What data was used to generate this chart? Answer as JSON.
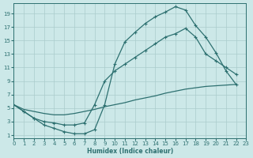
{
  "xlabel": "Humidex (Indice chaleur)",
  "bg_color": "#cce8e8",
  "grid_color": "#aacccc",
  "line_color": "#2d7070",
  "xlim": [
    0,
    23
  ],
  "ylim": [
    0.5,
    20.5
  ],
  "xticks": [
    0,
    1,
    2,
    3,
    4,
    5,
    6,
    7,
    8,
    9,
    10,
    11,
    12,
    13,
    14,
    15,
    16,
    17,
    18,
    19,
    20,
    21,
    22,
    23
  ],
  "yticks": [
    1,
    3,
    5,
    7,
    9,
    11,
    13,
    15,
    17,
    19
  ],
  "curve_upper": {
    "x": [
      0,
      1,
      2,
      3,
      4,
      5,
      6,
      7,
      8,
      9,
      10,
      11,
      12,
      13,
      14,
      15,
      16,
      17,
      18,
      19,
      20,
      21,
      22
    ],
    "y": [
      5.5,
      4.5,
      3.5,
      2.5,
      2.0,
      1.5,
      1.2,
      1.2,
      1.8,
      5.5,
      11.5,
      14.8,
      16.2,
      17.5,
      18.5,
      19.2,
      20.0,
      19.5,
      17.2,
      15.5,
      13.2,
      10.5,
      8.5
    ]
  },
  "curve_middle": {
    "x": [
      0,
      1,
      2,
      3,
      4,
      5,
      6,
      7,
      8,
      9,
      10,
      11,
      12,
      13,
      14,
      15,
      16,
      17,
      18,
      19,
      20,
      21,
      22
    ],
    "y": [
      5.5,
      4.5,
      3.5,
      3.0,
      2.8,
      2.5,
      2.5,
      2.8,
      5.5,
      9.0,
      10.5,
      11.5,
      12.5,
      13.5,
      14.5,
      15.5,
      16.0,
      16.8,
      15.5,
      13.0,
      12.0,
      11.0,
      10.0
    ]
  },
  "curve_bottom": {
    "x": [
      0,
      1,
      2,
      3,
      4,
      5,
      6,
      7,
      8,
      9,
      10,
      11,
      12,
      13,
      14,
      15,
      16,
      17,
      18,
      19,
      20,
      21,
      22
    ],
    "y": [
      5.5,
      4.8,
      4.5,
      4.2,
      4.0,
      4.0,
      4.2,
      4.5,
      4.8,
      5.2,
      5.5,
      5.8,
      6.2,
      6.5,
      6.8,
      7.2,
      7.5,
      7.8,
      8.0,
      8.2,
      8.3,
      8.4,
      8.5
    ]
  }
}
